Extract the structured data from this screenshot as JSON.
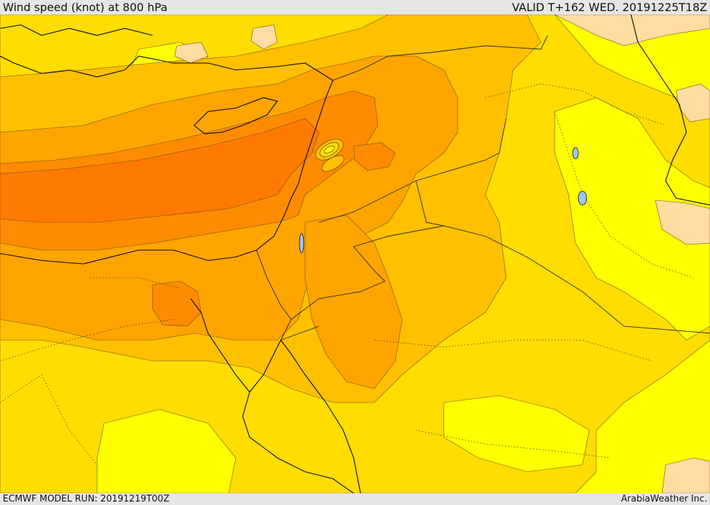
{
  "header": {
    "title": "Wind speed (knot) at 800 hPa",
    "valid": "VALID T+162 WED. 20191225T18Z"
  },
  "footer": {
    "model_run": "ECMWF MODEL RUN: 20191219T00Z",
    "credit": "ArabiaWeather Inc."
  },
  "palette": {
    "yellow": "#ffff00",
    "light_gold": "#ffdd00",
    "gold": "#ffc000",
    "orange": "#ffa500",
    "dark_orange": "#ff8c00",
    "deep_orange": "#ff7a00",
    "peach": "#ffdca0",
    "coast": "#000000",
    "border": "#222222",
    "contour": "#6a4a2a"
  }
}
